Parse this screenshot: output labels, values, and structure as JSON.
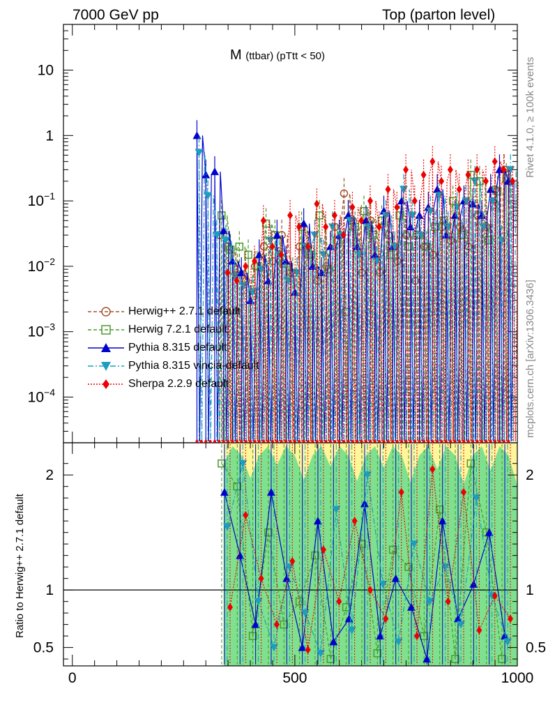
{
  "header": {
    "energy": "7000 GeV pp",
    "process": "Top (parton level)",
    "rivet": "Rivet 4.1.0, ≥ 100k events",
    "site": "mcplots.cern.ch [arXiv:1306.3436]"
  },
  "plot_title": {
    "main": "M",
    "sub": "(ttbar) (pTtt < 50)"
  },
  "colors": {
    "herwigpp": "#a0522d",
    "herwig7": "#4a9a2a",
    "pythia": "#0000cc",
    "vincia": "#1a9fbf",
    "sherpa": "#ee0000",
    "band_inner": "#7fe08f",
    "band_outer": "#fff59a"
  },
  "chart_data": [
    {
      "type": "line",
      "title": "M (ttbar) (pTtt < 50)",
      "xlabel": "",
      "ylabel": "",
      "xlim": [
        -20,
        1000
      ],
      "ylim": [
        2e-05,
        50
      ],
      "yscale": "log",
      "xticks": [
        "0",
        "500",
        "1000"
      ],
      "yticks": [
        "10^{-4}",
        "10^{-3}",
        "10^{-2}",
        "10^{-1}",
        "1",
        "10"
      ],
      "legend": [
        "Herwig++ 2.7.1 default",
        "Herwig 7.2.1 default",
        "Pythia 8.315 default",
        "Pythia 8.315 vincia-default",
        "Sherpa 2.2.9 default"
      ],
      "legend_position": "lower-left",
      "x": [
        280,
        300,
        320,
        340,
        360,
        380,
        400,
        420,
        440,
        460,
        480,
        500,
        520,
        540,
        560,
        580,
        600,
        620,
        640,
        660,
        680,
        700,
        720,
        740,
        760,
        780,
        800,
        820,
        840,
        860,
        880,
        900,
        920,
        940,
        960,
        980
      ],
      "series": [
        {
          "name": "Herwig++ 2.7.1 default",
          "values": [
            null,
            null,
            null,
            0.03,
            0.02,
            0.009,
            0.006,
            0.01,
            0.02,
            0.012,
            0.03,
            0.008,
            0.02,
            0.02,
            0.006,
            0.01,
            0.04,
            0.13,
            0.05,
            0.008,
            0.05,
            0.008,
            0.03,
            0.012,
            0.03,
            0.006,
            0.02,
            0.015,
            0.04,
            0.025,
            0.04,
            0.02,
            0.06,
            0.04,
            0.15,
            0.3
          ]
        },
        {
          "name": "Herwig 7.2.1 default",
          "values": [
            null,
            null,
            null,
            0.06,
            0.018,
            0.02,
            0.015,
            0.01,
            0.045,
            0.03,
            0.011,
            0.008,
            0.04,
            0.015,
            0.06,
            0.009,
            0.025,
            0.002,
            0.04,
            0.07,
            0.03,
            0.05,
            0.015,
            0.06,
            0.02,
            0.03,
            0.02,
            0.04,
            0.05,
            0.1,
            0.03,
            0.25,
            0.2,
            0.025,
            0.14,
            0.22
          ]
        },
        {
          "name": "Pythia 8.315 default",
          "values": [
            1.0,
            0.25,
            0.28,
            0.035,
            0.012,
            0.008,
            0.003,
            0.015,
            0.006,
            0.03,
            0.012,
            0.004,
            0.045,
            0.01,
            0.008,
            0.02,
            0.03,
            0.06,
            0.02,
            0.05,
            0.015,
            0.07,
            0.02,
            0.1,
            0.04,
            0.06,
            0.08,
            0.15,
            0.03,
            0.06,
            0.1,
            0.09,
            0.06,
            0.15,
            0.3,
            0.2
          ]
        },
        {
          "name": "Pythia 8.315 vincia-default",
          "values": [
            0.55,
            0.12,
            0.03,
            0.025,
            0.007,
            0.005,
            0.004,
            0.009,
            0.025,
            0.015,
            0.006,
            0.008,
            0.02,
            0.03,
            0.015,
            0.04,
            0.03,
            0.05,
            0.015,
            0.04,
            0.012,
            0.06,
            0.02,
            0.15,
            0.06,
            0.03,
            0.07,
            0.12,
            0.04,
            0.08,
            0.1,
            0.2,
            0.04,
            0.1,
            0.025,
            0.3
          ]
        },
        {
          "name": "Sherpa 2.2.9 default",
          "values": [
            null,
            null,
            null,
            0.008,
            0.006,
            0.01,
            0.012,
            0.05,
            0.02,
            0.015,
            0.06,
            0.04,
            0.02,
            0.09,
            0.04,
            0.06,
            0.03,
            0.08,
            0.05,
            0.1,
            0.04,
            0.15,
            0.08,
            0.3,
            0.1,
            0.25,
            0.4,
            0.2,
            0.3,
            0.15,
            0.25,
            0.3,
            0.2,
            0.4,
            0.3,
            0.2
          ]
        }
      ]
    },
    {
      "type": "line",
      "title": "",
      "xlabel": "",
      "ylabel": "Ratio to Herwig++ 2.7.1 default",
      "xlim": [
        -20,
        1000
      ],
      "ylim": [
        0.34,
        2.28
      ],
      "xticks": [
        "0",
        "500",
        "1000"
      ],
      "yticks": [
        "0.5",
        "1",
        "2"
      ],
      "reference": 1,
      "x": [
        345,
        380,
        415,
        450,
        485,
        520,
        555,
        590,
        625,
        660,
        695,
        730,
        765,
        800,
        835,
        870,
        905,
        940,
        975
      ],
      "series": [
        {
          "name": "Herwig 7.2.1 default",
          "values": [
            2.1,
            1.9,
            0.6,
            1.5,
            0.7,
            0.9,
            1.3,
            0.4,
            0.85,
            1.4,
            0.45,
            1.35,
            1.2,
            0.6,
            1.7,
            0.4,
            2.1,
            1.5,
            0.4
          ]
        },
        {
          "name": "Pythia 8.315 default",
          "values": [
            1.85,
            1.3,
            0.7,
            1.85,
            1.1,
            0.5,
            1.6,
            0.55,
            0.75,
            1.75,
            0.6,
            1.1,
            0.85,
            0.4,
            1.6,
            0.75,
            1.05,
            1.5,
            0.6
          ]
        },
        {
          "name": "Pythia 8.315 vincia-default",
          "values": [
            1.55,
            2.1,
            0.9,
            0.5,
            1.2,
            0.8,
            0.45,
            1.7,
            0.65,
            2.0,
            1.05,
            0.55,
            1.4,
            0.9,
            1.2,
            0.7,
            1.8,
            0.95,
            0.55
          ]
        },
        {
          "name": "Sherpa 2.2.9 default",
          "values": [
            0.85,
            1.65,
            1.1,
            0.7,
            1.25,
            0.48,
            1.35,
            0.9,
            1.6,
            1.0,
            0.75,
            1.85,
            0.6,
            2.05,
            0.9,
            1.85,
            0.65,
            0.95,
            0.75
          ]
        }
      ],
      "band_inner": [
        [
          340,
          0.34,
          2.28
        ],
        [
          1000,
          0.34,
          2.28
        ]
      ],
      "band_outer_top": [
        [
          340,
          2.28
        ],
        [
          1000,
          2.28
        ]
      ]
    }
  ]
}
